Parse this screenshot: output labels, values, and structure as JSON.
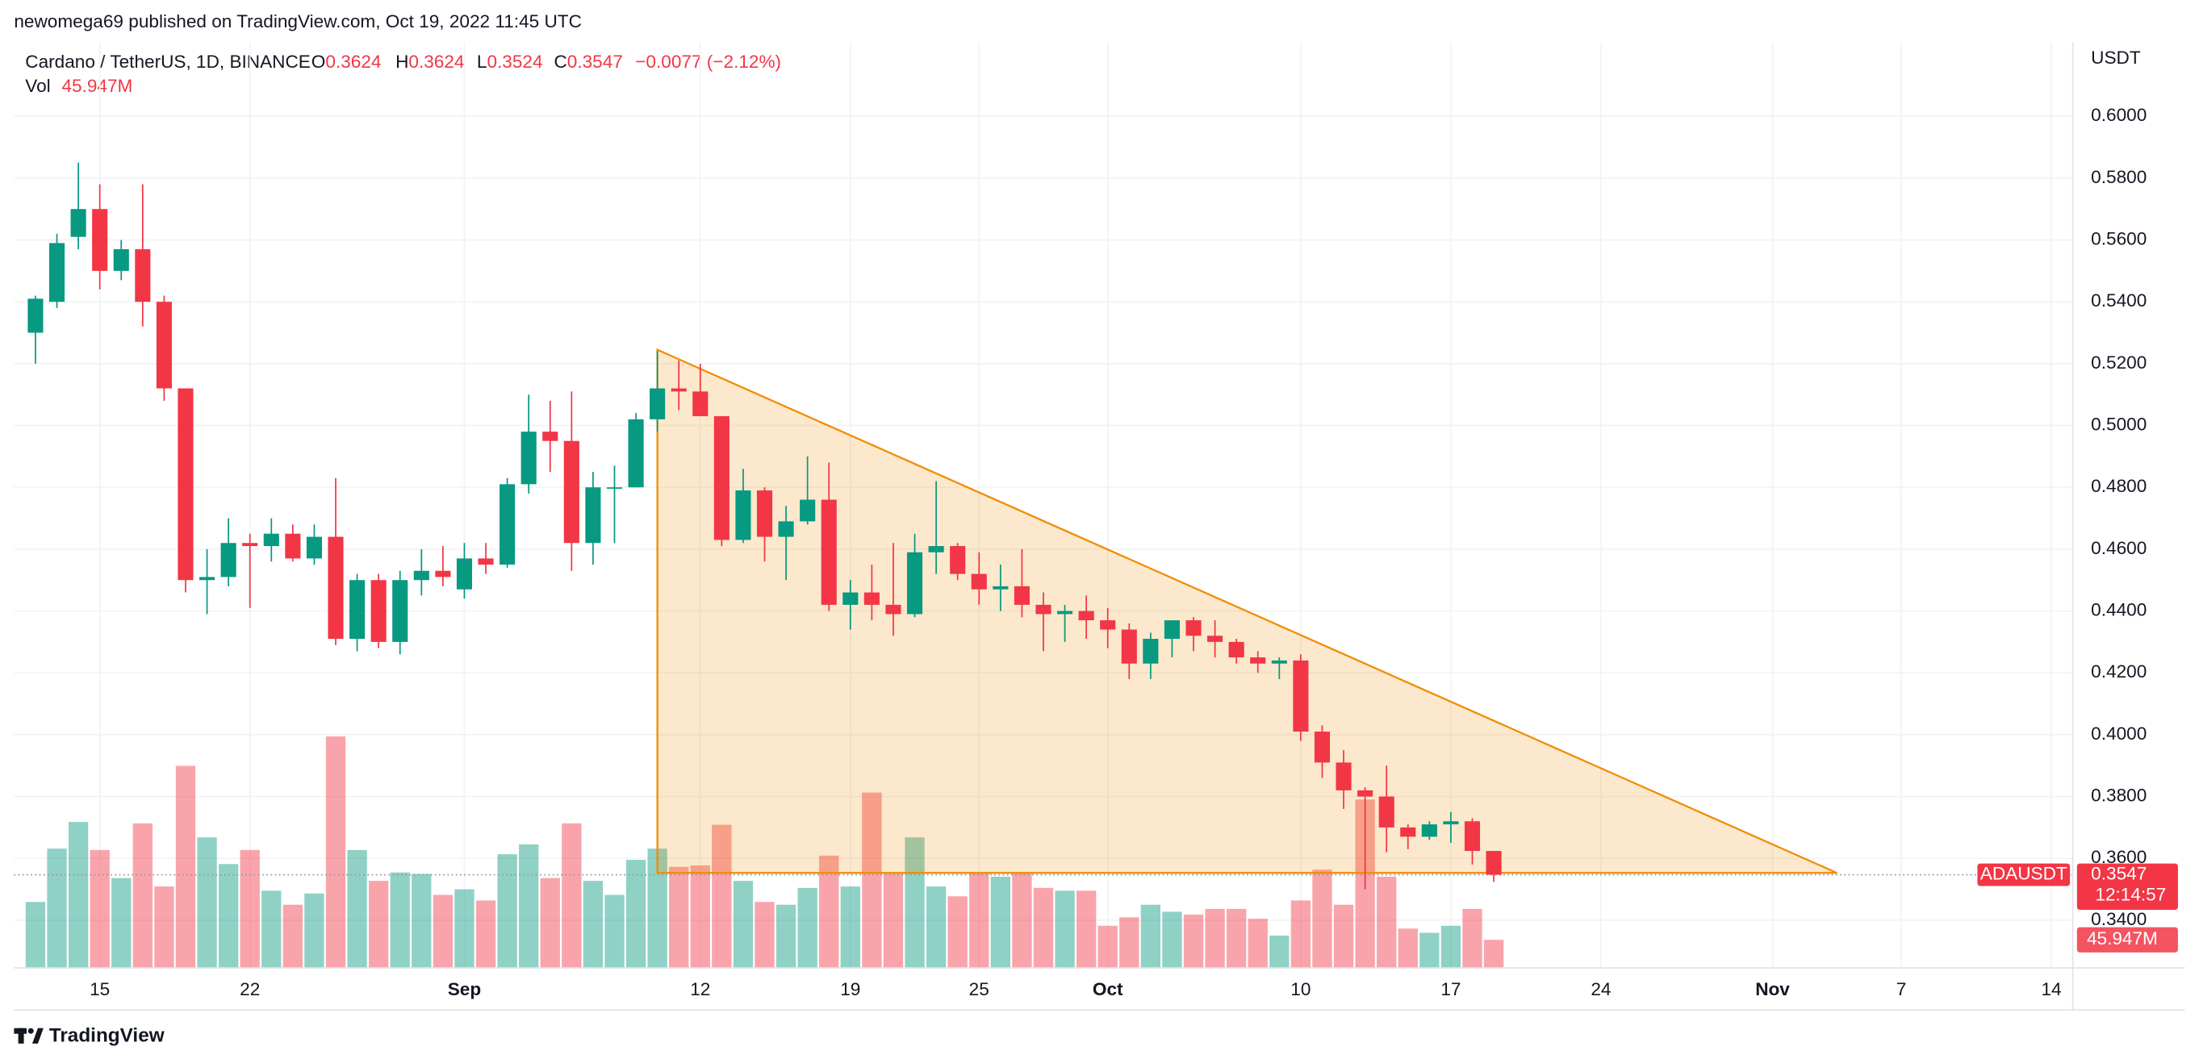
{
  "chart_data": {
    "type": "candlestick",
    "published": "newomega69 published on TradingView.com, Oct 19, 2022 11:45 UTC",
    "title": "Cardano / TetherUS, 1D, BINANCE",
    "ohlc_labels": [
      "O",
      "H",
      "L",
      "C"
    ],
    "change": "−0.0077 (−2.12%)",
    "volume_title": "Vol",
    "volume_label": "45.947M",
    "currency": "USDT",
    "symbol": "ADAUSDT",
    "countdown": "12:14:57",
    "brand": "TradingView",
    "up_color": "#089981",
    "down_color": "#f23645",
    "grid": true,
    "xlim": [
      "2022-08-11",
      "2022-11-15"
    ],
    "ylim": [
      0.3246,
      0.624
    ],
    "yticks": [
      {
        "value": 0.34,
        "label": "0.3400"
      },
      {
        "value": 0.36,
        "label": "0.3600"
      },
      {
        "value": 0.38,
        "label": "0.3800"
      },
      {
        "value": 0.4,
        "label": "0.4000"
      },
      {
        "value": 0.42,
        "label": "0.4200"
      },
      {
        "value": 0.44,
        "label": "0.4400"
      },
      {
        "value": 0.46,
        "label": "0.4600"
      },
      {
        "value": 0.48,
        "label": "0.4800"
      },
      {
        "value": 0.5,
        "label": "0.5000"
      },
      {
        "value": 0.52,
        "label": "0.5200"
      },
      {
        "value": 0.54,
        "label": "0.5400"
      },
      {
        "value": 0.56,
        "label": "0.5600"
      },
      {
        "value": 0.58,
        "label": "0.5800"
      },
      {
        "value": 0.6,
        "label": "0.6000"
      }
    ],
    "xticks": [
      {
        "value": "2022-08-15",
        "label": "15"
      },
      {
        "value": "2022-08-22",
        "label": "22"
      },
      {
        "value": "2022-09-01",
        "label": "Sep"
      },
      {
        "value": "2022-09-12",
        "label": "12"
      },
      {
        "value": "2022-09-19",
        "label": "19"
      },
      {
        "value": "2022-09-25",
        "label": "25"
      },
      {
        "value": "2022-10-01",
        "label": "Oct"
      },
      {
        "value": "2022-10-10",
        "label": "10"
      },
      {
        "value": "2022-10-17",
        "label": "17"
      },
      {
        "value": "2022-10-24",
        "label": "24"
      },
      {
        "value": "2022-11-01",
        "label": "Nov"
      },
      {
        "value": "2022-11-07",
        "label": "7"
      },
      {
        "value": "2022-11-14",
        "label": "14"
      }
    ],
    "x": [
      "2022-08-12",
      "2022-08-13",
      "2022-08-14",
      "2022-08-15",
      "2022-08-16",
      "2022-08-17",
      "2022-08-18",
      "2022-08-19",
      "2022-08-20",
      "2022-08-21",
      "2022-08-22",
      "2022-08-23",
      "2022-08-24",
      "2022-08-25",
      "2022-08-26",
      "2022-08-27",
      "2022-08-28",
      "2022-08-29",
      "2022-08-30",
      "2022-08-31",
      "2022-09-01",
      "2022-09-02",
      "2022-09-03",
      "2022-09-04",
      "2022-09-05",
      "2022-09-06",
      "2022-09-07",
      "2022-09-08",
      "2022-09-09",
      "2022-09-10",
      "2022-09-11",
      "2022-09-12",
      "2022-09-13",
      "2022-09-14",
      "2022-09-15",
      "2022-09-16",
      "2022-09-17",
      "2022-09-18",
      "2022-09-19",
      "2022-09-20",
      "2022-09-21",
      "2022-09-22",
      "2022-09-23",
      "2022-09-24",
      "2022-09-25",
      "2022-09-26",
      "2022-09-27",
      "2022-09-28",
      "2022-09-29",
      "2022-09-30",
      "2022-10-01",
      "2022-10-02",
      "2022-10-03",
      "2022-10-04",
      "2022-10-05",
      "2022-10-06",
      "2022-10-07",
      "2022-10-08",
      "2022-10-09",
      "2022-10-10",
      "2022-10-11",
      "2022-10-12",
      "2022-10-13",
      "2022-10-14",
      "2022-10-15",
      "2022-10-16",
      "2022-10-17",
      "2022-10-18",
      "2022-10-19"
    ],
    "open": [
      0.53,
      0.54,
      0.561,
      0.57,
      0.55,
      0.557,
      0.54,
      0.512,
      0.45,
      0.451,
      0.462,
      0.461,
      0.465,
      0.457,
      0.464,
      0.431,
      0.45,
      0.43,
      0.45,
      0.453,
      0.447,
      0.457,
      0.455,
      0.481,
      0.498,
      0.495,
      0.462,
      0.48,
      0.48,
      0.502,
      0.512,
      0.511,
      0.503,
      0.463,
      0.479,
      0.464,
      0.469,
      0.476,
      0.442,
      0.446,
      0.442,
      0.439,
      0.459,
      0.461,
      0.452,
      0.447,
      0.448,
      0.442,
      0.439,
      0.44,
      0.437,
      0.434,
      0.423,
      0.431,
      0.437,
      0.432,
      0.43,
      0.425,
      0.423,
      0.424,
      0.401,
      0.391,
      0.382,
      0.38,
      0.37,
      0.367,
      0.371,
      0.372,
      0.3624
    ],
    "high": [
      0.542,
      0.562,
      0.585,
      0.578,
      0.56,
      0.578,
      0.542,
      0.512,
      0.46,
      0.47,
      0.465,
      0.47,
      0.468,
      0.468,
      0.483,
      0.452,
      0.452,
      0.453,
      0.46,
      0.461,
      0.462,
      0.462,
      0.483,
      0.51,
      0.508,
      0.511,
      0.485,
      0.487,
      0.504,
      0.524,
      0.521,
      0.52,
      0.503,
      0.486,
      0.48,
      0.474,
      0.49,
      0.488,
      0.45,
      0.455,
      0.462,
      0.465,
      0.482,
      0.462,
      0.459,
      0.455,
      0.46,
      0.446,
      0.442,
      0.445,
      0.441,
      0.436,
      0.433,
      0.437,
      0.438,
      0.437,
      0.431,
      0.427,
      0.425,
      0.426,
      0.403,
      0.395,
      0.383,
      0.39,
      0.371,
      0.372,
      0.375,
      0.373,
      0.3624
    ],
    "low": [
      0.52,
      0.538,
      0.557,
      0.544,
      0.547,
      0.532,
      0.508,
      0.446,
      0.439,
      0.448,
      0.441,
      0.456,
      0.456,
      0.455,
      0.429,
      0.427,
      0.428,
      0.426,
      0.445,
      0.448,
      0.444,
      0.452,
      0.454,
      0.478,
      0.485,
      0.453,
      0.455,
      0.462,
      0.48,
      0.498,
      0.505,
      0.503,
      0.461,
      0.462,
      0.456,
      0.45,
      0.468,
      0.44,
      0.434,
      0.437,
      0.432,
      0.438,
      0.452,
      0.45,
      0.442,
      0.44,
      0.438,
      0.427,
      0.43,
      0.431,
      0.428,
      0.418,
      0.418,
      0.425,
      0.427,
      0.425,
      0.423,
      0.42,
      0.418,
      0.398,
      0.386,
      0.376,
      0.35,
      0.362,
      0.363,
      0.366,
      0.365,
      0.358,
      0.3524
    ],
    "close": [
      0.541,
      0.559,
      0.57,
      0.55,
      0.557,
      0.54,
      0.512,
      0.45,
      0.451,
      0.462,
      0.461,
      0.465,
      0.457,
      0.464,
      0.431,
      0.45,
      0.43,
      0.45,
      0.453,
      0.451,
      0.457,
      0.455,
      0.481,
      0.498,
      0.495,
      0.462,
      0.48,
      0.48,
      0.502,
      0.512,
      0.511,
      0.503,
      0.463,
      0.479,
      0.464,
      0.469,
      0.476,
      0.442,
      0.446,
      0.442,
      0.439,
      0.459,
      0.461,
      0.452,
      0.447,
      0.448,
      0.442,
      0.439,
      0.44,
      0.437,
      0.434,
      0.423,
      0.431,
      0.437,
      0.432,
      0.43,
      0.425,
      0.423,
      0.424,
      0.401,
      0.391,
      0.382,
      0.38,
      0.37,
      0.367,
      0.371,
      0.372,
      0.3624,
      0.3547
    ],
    "volume": [
      108100000,
      195500000,
      239200000,
      193200000,
      147200000,
      236900000,
      133400000,
      331200000,
      213900000,
      170200000,
      193200000,
      126500000,
      103500000,
      121900000,
      379500000,
      193200000,
      142600000,
      156400000,
      154100000,
      119600000,
      128800000,
      110400000,
      186300000,
      202400000,
      147200000,
      236900000,
      142600000,
      119600000,
      177100000,
      195500000,
      165600000,
      167900000,
      234600000,
      142600000,
      108100000,
      103500000,
      131100000,
      184000000,
      133400000,
      287500000,
      154100000,
      213900000,
      133400000,
      117300000,
      156400000,
      149500000,
      156400000,
      131100000,
      126500000,
      126500000,
      69000000,
      82800000,
      103500000,
      92000000,
      87400000,
      96600000,
      96600000,
      80500000,
      52900000,
      110400000,
      161000000,
      103500000,
      276000000,
      149500000,
      64400000,
      57500000,
      69000000,
      96600000,
      45947000
    ],
    "drawing": {
      "type": "triangle",
      "color": "#f08c00",
      "points": [
        {
          "x": "2022-09-10",
          "y": 0.5245
        },
        {
          "x": "2022-11-04",
          "y": 0.3553
        },
        {
          "x": "2022-09-10",
          "y": 0.3553
        }
      ]
    }
  }
}
